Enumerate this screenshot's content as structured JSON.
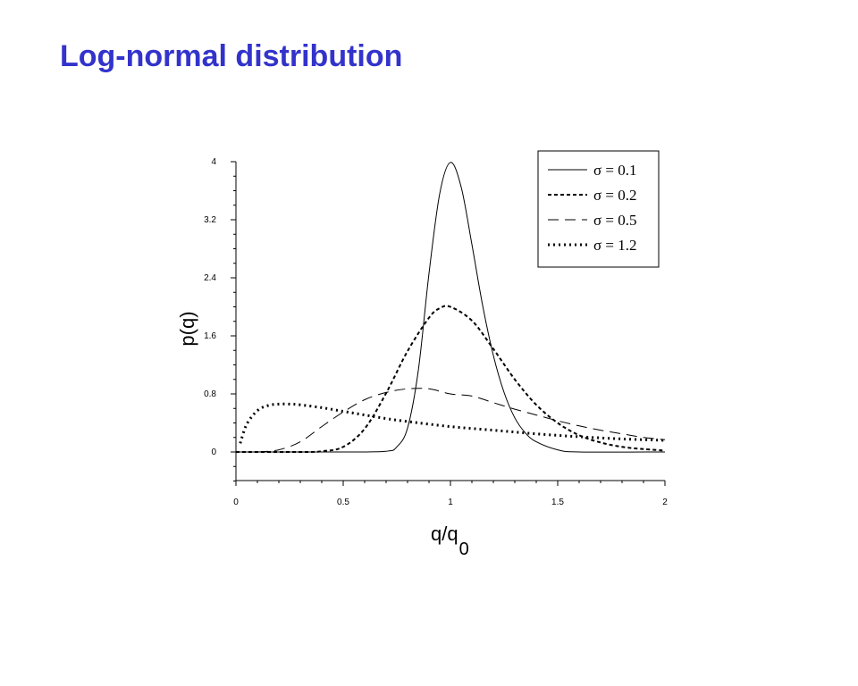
{
  "slide": {
    "title": "Log-normal distribution"
  },
  "chart_data": {
    "type": "line",
    "title": "",
    "xlabel": "q/q",
    "xlabel_subscript": "0",
    "ylabel": "p(q)",
    "xlim": [
      0,
      2
    ],
    "ylim": [
      0,
      4
    ],
    "x_ticks": [
      0,
      0.5,
      1,
      1.5,
      2
    ],
    "x_tick_labels": [
      "0",
      "0.5",
      "1",
      "1.5",
      "2"
    ],
    "y_ticks": [
      0,
      0.8,
      1.6,
      2.4,
      3.2,
      4
    ],
    "y_tick_labels": [
      "0",
      "0.8",
      "1.6",
      "2.4",
      "3.2",
      "4"
    ],
    "grid": false,
    "legend_position": "top-right",
    "series": [
      {
        "name": "σ = 0.1",
        "style": "solid",
        "x": [
          0,
          0.5,
          0.7,
          0.75,
          0.8,
          0.85,
          0.9,
          0.95,
          1.0,
          1.05,
          1.1,
          1.15,
          1.2,
          1.25,
          1.3,
          1.35,
          1.4,
          1.5,
          1.6,
          2.0
        ],
        "y": [
          0,
          0,
          0.01,
          0.07,
          0.33,
          1.12,
          2.46,
          3.56,
          3.99,
          3.65,
          2.86,
          2.02,
          1.33,
          0.82,
          0.47,
          0.26,
          0.14,
          0.03,
          0.0,
          0
        ]
      },
      {
        "name": "σ = 0.2",
        "style": "dash",
        "x": [
          0,
          0.3,
          0.4,
          0.5,
          0.6,
          0.7,
          0.8,
          0.9,
          0.95,
          1.0,
          1.1,
          1.2,
          1.3,
          1.4,
          1.5,
          1.6,
          1.7,
          1.8,
          1.9,
          2.0
        ],
        "y": [
          0,
          0.0,
          0.01,
          0.07,
          0.32,
          0.81,
          1.39,
          1.85,
          1.98,
          2.0,
          1.81,
          1.42,
          1.0,
          0.65,
          0.4,
          0.23,
          0.13,
          0.07,
          0.04,
          0.02
        ]
      },
      {
        "name": "σ = 0.5",
        "style": "longdash",
        "x": [
          0.1,
          0.2,
          0.3,
          0.4,
          0.5,
          0.6,
          0.7,
          0.8,
          0.9,
          1.0,
          1.1,
          1.2,
          1.3,
          1.4,
          1.5,
          1.6,
          1.7,
          1.8,
          1.9,
          2.0
        ],
        "y": [
          0.0,
          0.03,
          0.14,
          0.35,
          0.55,
          0.72,
          0.82,
          0.87,
          0.87,
          0.8,
          0.77,
          0.68,
          0.59,
          0.51,
          0.43,
          0.36,
          0.3,
          0.25,
          0.2,
          0.17
        ]
      },
      {
        "name": "σ = 1.2",
        "style": "dot",
        "x": [
          0.02,
          0.05,
          0.1,
          0.15,
          0.2,
          0.25,
          0.3,
          0.4,
          0.5,
          0.6,
          0.7,
          0.8,
          1.0,
          1.2,
          1.4,
          1.6,
          1.8,
          2.0
        ],
        "y": [
          0.12,
          0.38,
          0.57,
          0.64,
          0.66,
          0.66,
          0.65,
          0.61,
          0.56,
          0.51,
          0.46,
          0.42,
          0.35,
          0.3,
          0.25,
          0.21,
          0.18,
          0.16
        ]
      }
    ]
  }
}
